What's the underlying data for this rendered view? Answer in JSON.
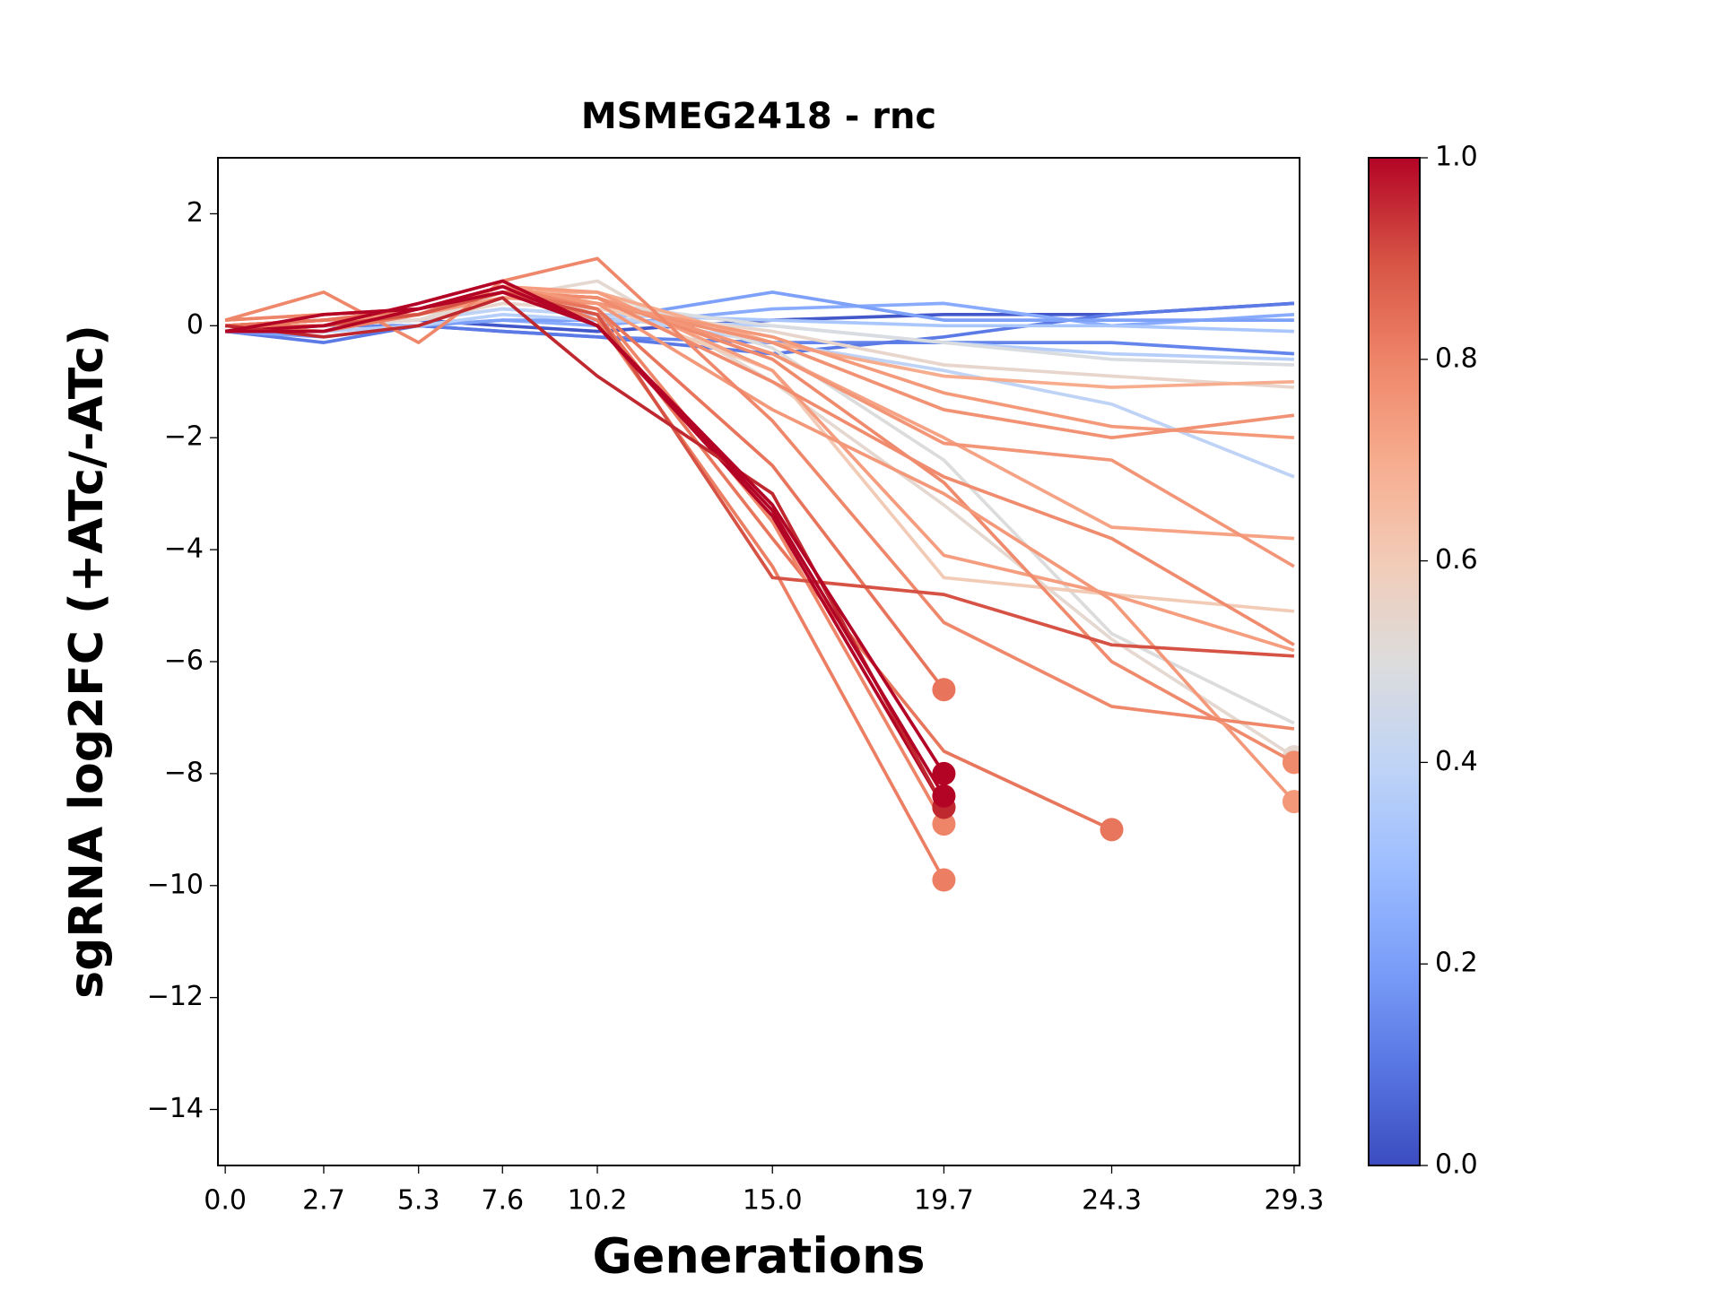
{
  "chart_data": {
    "type": "line",
    "title": "MSMEG2418 - rnc",
    "x_label": "Generations",
    "y_label": "sgRNA log2FC (+ATc/-ATc)",
    "x": [
      0.0,
      2.7,
      5.3,
      7.6,
      10.2,
      15.0,
      19.7,
      24.3,
      29.3
    ],
    "xlim": [
      -0.2,
      29.45
    ],
    "xticks": [
      {
        "value": 0,
        "label": "0.0"
      },
      2.7,
      5.3,
      7.6,
      10.2,
      {
        "value": 15,
        "label": "15.0"
      },
      19.7,
      24.3,
      29.3
    ],
    "ylim": [
      -15,
      3
    ],
    "yticks": [
      {
        "value": -14,
        "label": "−14"
      },
      {
        "value": -12,
        "label": "−12"
      },
      {
        "value": -10,
        "label": "−10"
      },
      {
        "value": -8,
        "label": "−8"
      },
      {
        "value": -6,
        "label": "−6"
      },
      {
        "value": -4,
        "label": "−4"
      },
      {
        "value": -2,
        "label": "−2"
      },
      0,
      2
    ],
    "colorbar": {
      "lim": [
        0,
        1
      ],
      "ticks": [
        {
          "value": 0,
          "label": "0.0"
        },
        {
          "value": 0.2,
          "label": "0.2"
        },
        {
          "value": 0.4,
          "label": "0.4"
        },
        {
          "value": 0.6,
          "label": "0.6"
        },
        {
          "value": 0.8,
          "label": "0.8"
        },
        {
          "value": 1,
          "label": "1.0"
        }
      ]
    },
    "series": [
      {
        "color": "#6485ec",
        "values": [
          0,
          0,
          0,
          -0.1,
          -0.2,
          -0.3,
          -0.3,
          -0.3,
          -0.5
        ]
      },
      {
        "color": "#4257c9",
        "values": [
          -0.1,
          0,
          0.1,
          0,
          -0.1,
          0.1,
          0.2,
          0.2,
          0.4
        ]
      },
      {
        "color": "#5b7ae5",
        "values": [
          -0.1,
          -0.3,
          0,
          -0.1,
          -0.2,
          -0.5,
          -0.2,
          0.2,
          0.4
        ]
      },
      {
        "color": "#88abfd",
        "values": [
          0,
          -0.1,
          0,
          0.1,
          0,
          0.3,
          0.4,
          0,
          0.2
        ]
      },
      {
        "color": "#7da0f9",
        "values": [
          -0.1,
          -0.2,
          0,
          0.1,
          0.1,
          0.6,
          0.1,
          0.1,
          0.1
        ]
      },
      {
        "color": "#aac7fd",
        "values": [
          0,
          0,
          0.1,
          0.3,
          0.2,
          0.1,
          0,
          0,
          -0.1
        ]
      },
      {
        "color": "#b6cefa",
        "values": [
          -0.1,
          -0.1,
          0,
          0.2,
          0.1,
          0,
          -0.3,
          -0.5,
          -0.6
        ]
      },
      {
        "color": "#bfd3f6",
        "values": [
          0,
          0,
          0.1,
          0.3,
          0.2,
          -0.3,
          -0.8,
          -1.4,
          -2.7
        ]
      },
      {
        "color": "#d9dce1",
        "values": [
          0,
          0,
          0.1,
          0.5,
          0.4,
          0,
          -0.3,
          -0.6,
          -0.7
        ]
      },
      {
        "color": "#e8d6cc",
        "values": [
          0,
          0,
          0.1,
          0.4,
          0.3,
          -0.1,
          -0.7,
          -0.9,
          -1.1
        ]
      },
      {
        "color": "#dddcdc",
        "values": [
          0,
          0,
          0.1,
          0.6,
          0.6,
          -0.4,
          -2.4,
          -5.5,
          -7.1
        ]
      },
      {
        "color": "#e5d8d1",
        "values": [
          0,
          0.1,
          0.1,
          0.5,
          0.8,
          -1.0,
          -3.2,
          -5.6,
          -7.7
        ],
        "marker": true
      },
      {
        "color": "#f2cbb7",
        "values": [
          0,
          0.1,
          0.2,
          0.5,
          0.4,
          -0.8,
          -4.5,
          -4.8,
          -5.1
        ]
      },
      {
        "color": "#f7ac8e",
        "values": [
          0,
          0.1,
          0.2,
          0.6,
          0.6,
          -0.3,
          -0.9,
          -1.1,
          -1.0
        ]
      },
      {
        "color": "#f6a385",
        "values": [
          0,
          0.1,
          0.2,
          0.6,
          0.5,
          -0.5,
          -2.0,
          -3.6,
          -3.8
        ]
      },
      {
        "color": "#f59d7e",
        "values": [
          0.1,
          0.2,
          0.3,
          0.7,
          0.6,
          -0.8,
          -4.1,
          -4.8,
          -5.8
        ]
      },
      {
        "color": "#f49a7b",
        "values": [
          0,
          0,
          0.2,
          0.5,
          0.4,
          -0.2,
          -1.2,
          -1.8,
          -2.0
        ]
      },
      {
        "color": "#f08a6c",
        "values": [
          0,
          0.1,
          0.2,
          0.6,
          0.5,
          -0.6,
          -2.8,
          -6.0,
          -7.8
        ],
        "marker": true
      },
      {
        "color": "#f29274",
        "values": [
          0,
          0.1,
          0.2,
          0.6,
          0.4,
          -0.3,
          -1.5,
          -2.0,
          -1.6
        ]
      },
      {
        "color": "#f39577",
        "values": [
          0,
          0.1,
          0.2,
          0.6,
          0.5,
          -0.5,
          -2.1,
          -2.4,
          -4.3
        ]
      },
      {
        "color": "#f08b6e",
        "values": [
          0,
          0.1,
          0.2,
          0.6,
          0.5,
          -1.0,
          -2.7,
          -3.8,
          -5.7
        ]
      },
      {
        "color": "#f4987a",
        "values": [
          0,
          0,
          0.3,
          0.7,
          0.4,
          -1.5,
          -3.0,
          -4.9,
          -8.5
        ],
        "marker": true
      },
      {
        "color": "#ef886b",
        "values": [
          0.1,
          0.6,
          -0.3,
          0.8,
          1.2,
          -1.7,
          -5.3,
          -6.8,
          -7.2
        ]
      },
      {
        "color": "#e8765c",
        "values": [
          0,
          0,
          0.2,
          0.6,
          0.2,
          -3.8,
          -7.6,
          -9.0,
          null
        ],
        "marker": true
      },
      {
        "color": "#ee8468",
        "values": [
          0.1,
          0.2,
          0.3,
          0.7,
          0.3,
          -3.5,
          -8.9,
          null,
          null
        ],
        "marker": true
      },
      {
        "color": "#ec7f63",
        "values": [
          0,
          -0.1,
          0.2,
          0.7,
          0.1,
          -4.3,
          -9.9,
          null,
          null
        ],
        "marker": true
      },
      {
        "color": "#e7745b",
        "values": [
          0,
          0.1,
          0.3,
          0.6,
          0.3,
          -2.5,
          -6.5,
          null,
          null
        ],
        "marker": true
      },
      {
        "color": "#d65244",
        "values": [
          -0.1,
          0,
          0.2,
          0.6,
          0.2,
          -4.5,
          -4.8,
          -5.7,
          -5.9
        ]
      },
      {
        "color": "#b40426",
        "values": [
          -0.1,
          0,
          0.4,
          0.8,
          0,
          -3.4,
          -8.6,
          null,
          null
        ],
        "marker": true
      },
      {
        "color": "#c0282f",
        "values": [
          0,
          -0.2,
          0,
          0.5,
          -0.9,
          -3.0,
          -8.6,
          null,
          null
        ],
        "marker": true
      },
      {
        "color": "#b40426",
        "values": [
          -0.1,
          -0.1,
          0.3,
          0.6,
          0,
          -3.3,
          -8.4,
          null,
          null
        ],
        "marker": true
      },
      {
        "color": "#b40426",
        "values": [
          -0.1,
          0.2,
          0.3,
          0.7,
          0,
          -3.2,
          -8.0,
          null,
          null
        ],
        "marker": true
      }
    ]
  }
}
